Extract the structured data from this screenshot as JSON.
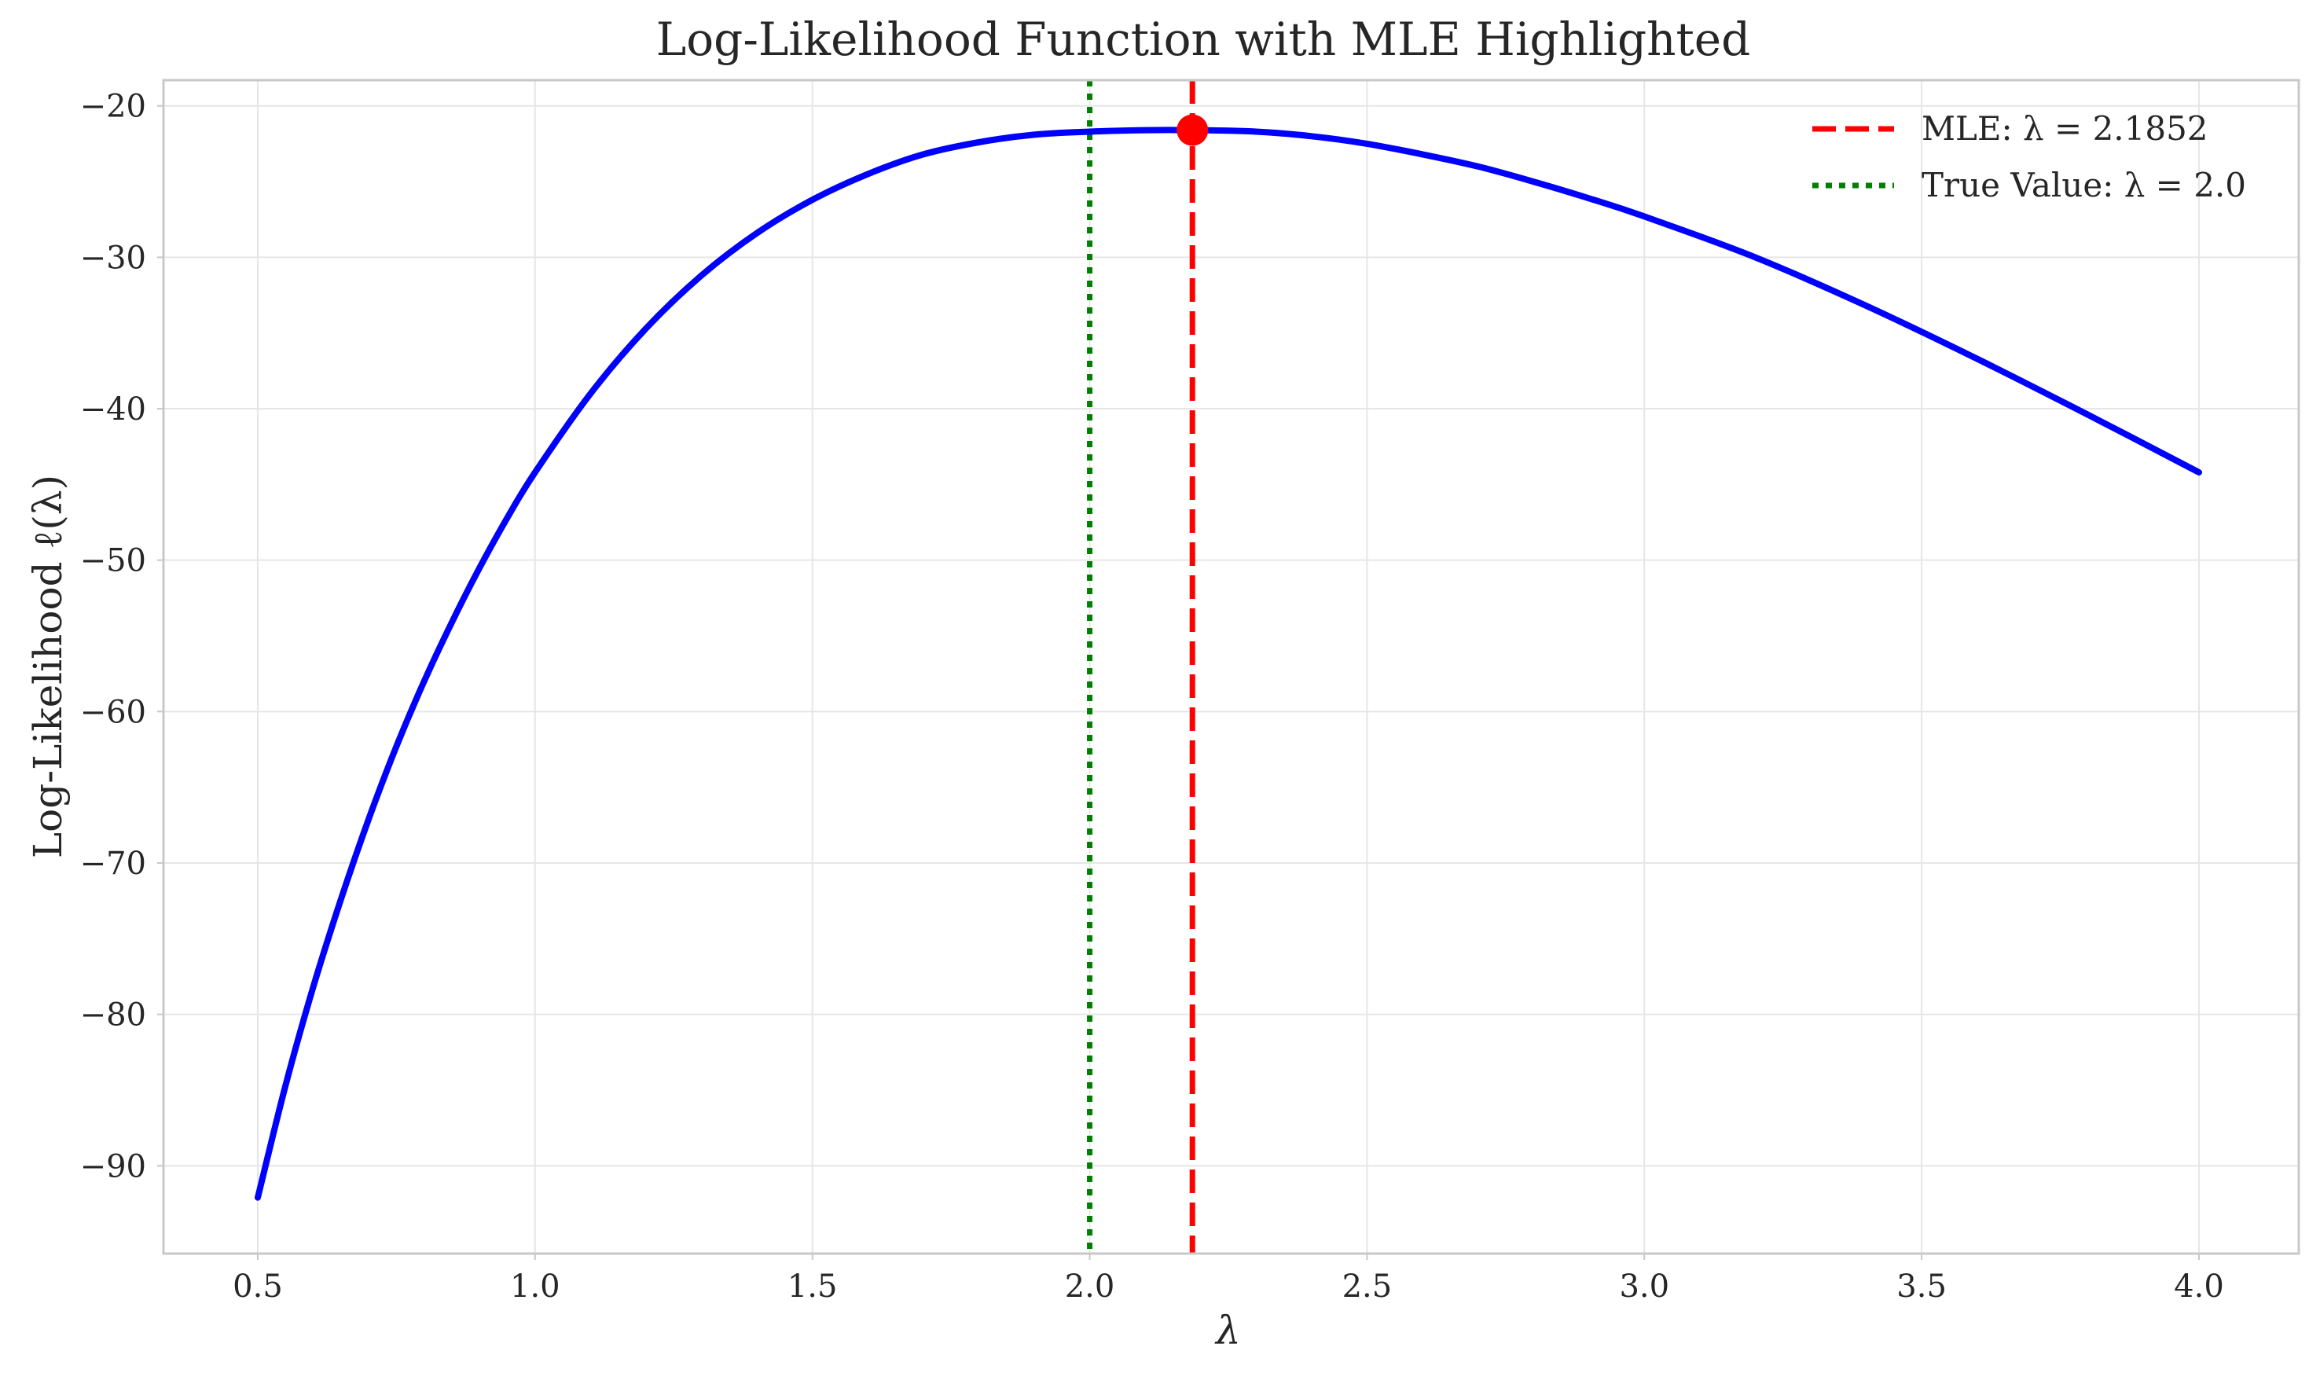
{
  "chart_data": {
    "type": "line",
    "title": "Log-Likelihood Function with MLE Highlighted",
    "xlabel": "λ",
    "ylabel": "Log-Likelihood ℓ(λ)",
    "xlim": [
      0.33,
      4.18
    ],
    "ylim": [
      -95.8,
      -18.3
    ],
    "xticks": [
      0.5,
      1.0,
      1.5,
      2.0,
      2.5,
      3.0,
      3.5,
      4.0
    ],
    "xtick_labels": [
      "0.5",
      "1.0",
      "1.5",
      "2.0",
      "2.5",
      "3.0",
      "3.5",
      "4.0"
    ],
    "yticks": [
      -20,
      -30,
      -40,
      -50,
      -60,
      -70,
      -80,
      -90
    ],
    "ytick_labels": [
      "−20",
      "−30",
      "−40",
      "−50",
      "−60",
      "−70",
      "−80",
      "−90"
    ],
    "grid": true,
    "legend_position": "top-right",
    "series": [
      {
        "name": "",
        "color": "#0000ff",
        "x": [
          0.5,
          0.55,
          0.6,
          0.65,
          0.7,
          0.75,
          0.8,
          0.85,
          0.9,
          0.95,
          1.0,
          1.1,
          1.2,
          1.3,
          1.4,
          1.5,
          1.6,
          1.7,
          1.8,
          1.9,
          2.0,
          2.1,
          2.1852,
          2.3,
          2.4,
          2.5,
          2.6,
          2.7,
          2.8,
          2.9,
          3.0,
          3.2,
          3.4,
          3.6,
          3.8,
          4.0
        ],
        "y": [
          -92.1,
          -84.7,
          -78.2,
          -72.4,
          -67.1,
          -62.3,
          -58.0,
          -54.1,
          -50.5,
          -47.2,
          -44.2,
          -39.0,
          -34.7,
          -31.2,
          -28.4,
          -26.2,
          -24.5,
          -23.2,
          -22.4,
          -21.9,
          -21.7,
          -21.6,
          -21.6,
          -21.7,
          -22.0,
          -22.5,
          -23.2,
          -24.0,
          -25.0,
          -26.1,
          -27.3,
          -30.0,
          -33.2,
          -36.7,
          -40.4,
          -44.2
        ]
      }
    ],
    "mle": {
      "x": 2.1852,
      "y": -21.6,
      "color": "#ff0000",
      "legend": "MLE: λ = 2.1852"
    },
    "true_value": {
      "x": 2.0,
      "color": "#008000",
      "legend": "True Value: λ = 2.0"
    }
  }
}
